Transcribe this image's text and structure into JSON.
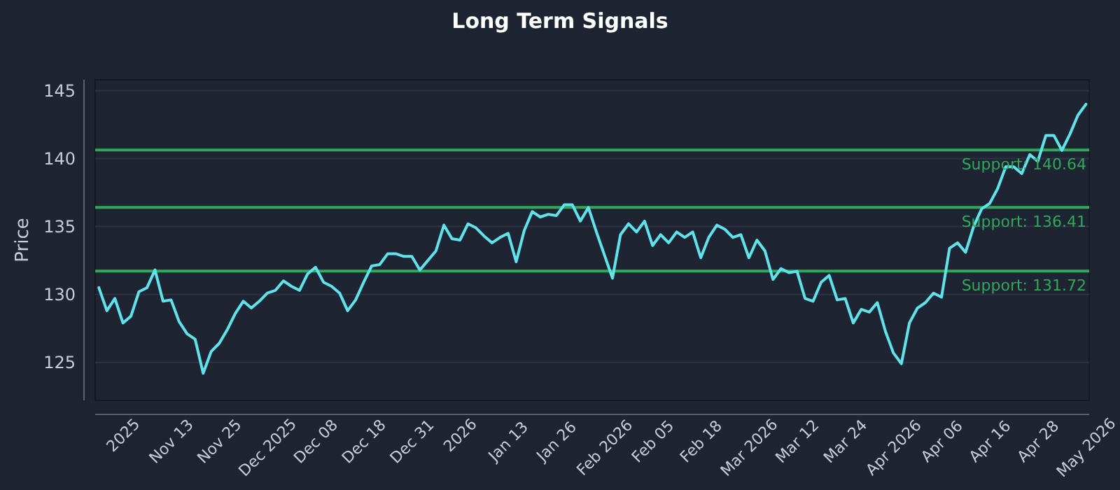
{
  "chart_data": {
    "type": "line",
    "title": "Long Term Signals",
    "ylabel": "Price",
    "categories": [
      null,
      null,
      null,
      "2025",
      null,
      null,
      null,
      null,
      null,
      "Nov 13",
      null,
      null,
      null,
      null,
      null,
      "Nov 25",
      null,
      null,
      null,
      null,
      null,
      "Dec 2025",
      null,
      null,
      null,
      null,
      null,
      "Dec 08",
      null,
      null,
      null,
      null,
      null,
      "Dec 18",
      null,
      null,
      null,
      null,
      null,
      "Dec 31",
      null,
      null,
      null,
      null,
      null,
      "2026",
      null,
      null,
      null,
      null,
      null,
      "Jan 13",
      null,
      null,
      null,
      null,
      null,
      "Jan 26",
      null,
      null,
      null,
      null,
      null,
      "Feb 2026",
      null,
      null,
      null,
      null,
      null,
      "Feb 05",
      null,
      null,
      null,
      null,
      null,
      "Feb 18",
      null,
      null,
      null,
      null,
      null,
      "Mar 2026",
      null,
      null,
      null,
      null,
      null,
      "Mar 12",
      null,
      null,
      null,
      null,
      null,
      "Mar 24",
      null,
      null,
      null,
      null,
      null,
      "Apr 2026",
      null,
      null,
      null,
      null,
      null,
      "Apr 06",
      null,
      null,
      null,
      null,
      null,
      "Apr 16",
      null,
      null,
      null,
      null,
      null,
      "Apr 28",
      null,
      null,
      null,
      null,
      null,
      "May 2026"
    ],
    "series": [
      {
        "color": "#5fe3ea",
        "values": [
          130.5,
          128.8,
          129.7,
          127.9,
          128.4,
          130.2,
          130.5,
          131.8,
          129.5,
          129.6,
          128,
          127.1,
          126.7,
          124.2,
          125.8,
          126.4,
          127.4,
          128.6,
          129.5,
          129,
          129.5,
          130.1,
          130.3,
          131,
          130.6,
          130.3,
          131.5,
          132,
          130.9,
          130.6,
          130.1,
          128.8,
          129.6,
          130.9,
          132.1,
          132.2,
          133,
          133,
          132.8,
          132.8,
          131.8,
          132.5,
          133.2,
          135.1,
          134.1,
          134,
          135.2,
          134.9,
          134.3,
          133.8,
          134.2,
          134.5,
          132.4,
          134.7,
          136.1,
          135.7,
          135.9,
          135.8,
          136.6,
          136.6,
          135.4,
          136.4,
          134.6,
          132.9,
          131.2,
          134.4,
          135.2,
          134.6,
          135.4,
          133.6,
          134.4,
          133.8,
          134.6,
          134.2,
          134.6,
          132.7,
          134.2,
          135.1,
          134.8,
          134.2,
          134.4,
          132.7,
          134,
          133.2,
          131.1,
          131.9,
          131.6,
          131.7,
          129.7,
          129.5,
          130.9,
          131.4,
          129.6,
          129.7,
          127.9,
          128.9,
          128.7,
          129.4,
          127.3,
          125.7,
          124.9,
          127.9,
          129,
          129.4,
          130.1,
          129.8,
          133.4,
          133.8,
          133.1,
          135,
          136.3,
          136.7,
          137.8,
          139.4,
          139.4,
          138.9,
          140.3,
          139.8,
          141.7,
          141.7,
          140.6,
          141.8,
          143.2,
          144
        ]
      }
    ],
    "ylim": [
      122.2,
      145.8
    ],
    "yticks": [
      125,
      130,
      135,
      140,
      145
    ],
    "grid": "y",
    "line_style": "solid",
    "marker": "none",
    "ref_lines": [
      {
        "axis": "y",
        "value": 140.64,
        "label": "Support: 140.64",
        "color": "#2fa85a"
      },
      {
        "axis": "y",
        "value": 136.41,
        "label": "Support: 136.41",
        "color": "#2fa85a"
      },
      {
        "axis": "y",
        "value": 131.72,
        "label": "Support: 131.72",
        "color": "#2fa85a"
      }
    ]
  }
}
